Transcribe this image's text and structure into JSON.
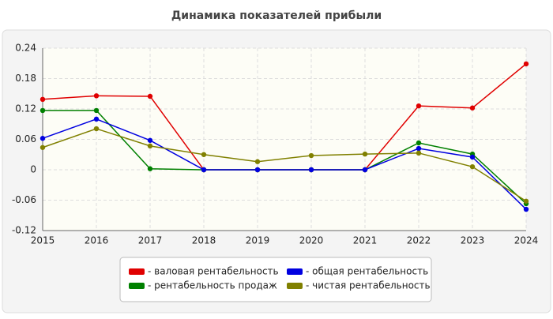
{
  "chart_data": {
    "type": "line",
    "title": "Динамика показателей прибыли",
    "x": [
      2015,
      2016,
      2017,
      2018,
      2019,
      2020,
      2021,
      2022,
      2023,
      2024
    ],
    "xlim": [
      2015,
      2024
    ],
    "xticks": [
      2015,
      2016,
      2017,
      2018,
      2019,
      2020,
      2021,
      2022,
      2023,
      2024
    ],
    "ylim": [
      -0.12,
      0.24
    ],
    "yticks": [
      -0.12,
      -0.06,
      0,
      0.06,
      0.12,
      0.18,
      0.24
    ],
    "grid": true,
    "legend": "bottom",
    "series": [
      {
        "name": "- валовая рентабельность",
        "color": "#e00000",
        "values": [
          0.139,
          0.146,
          0.145,
          0,
          0,
          0,
          0,
          0.126,
          0.122,
          0.209
        ]
      },
      {
        "name": "- рентабельность продаж",
        "color": "#008000",
        "values": [
          0.117,
          0.117,
          0.002,
          0,
          0,
          0,
          0,
          0.053,
          0.031,
          -0.067
        ]
      },
      {
        "name": "- общая рентабельность",
        "color": "#0000e0",
        "values": [
          0.062,
          0.1,
          0.058,
          0,
          0,
          0,
          0,
          0.042,
          0.025,
          -0.078
        ]
      },
      {
        "name": "- чистая рентабельность",
        "color": "#808000",
        "values": [
          0.044,
          0.081,
          0.047,
          0.03,
          0.016,
          0.028,
          0.031,
          0.033,
          0.006,
          -0.062
        ]
      }
    ]
  }
}
